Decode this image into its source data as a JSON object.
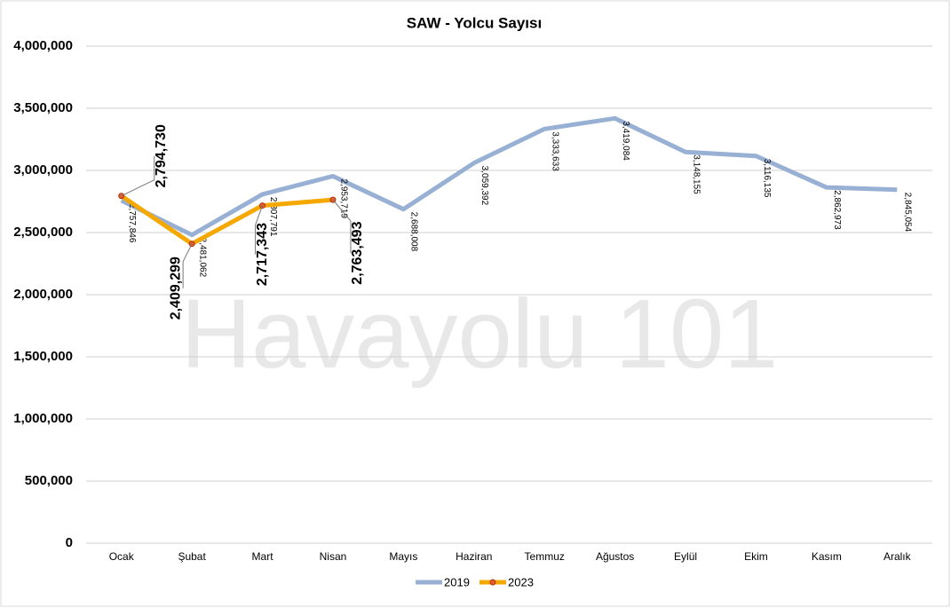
{
  "chart_data": {
    "type": "line",
    "title": "SAW - Yolcu Sayısı",
    "watermark": "Havayolu 101",
    "categories": [
      "Ocak",
      "Şubat",
      "Mart",
      "Nisan",
      "Mayıs",
      "Haziran",
      "Temmuz",
      "Ağustos",
      "Eylül",
      "Ekim",
      "Kasım",
      "Aralık"
    ],
    "series": [
      {
        "name": "2019",
        "color": "#98b0d3",
        "values": [
          2757846,
          2481062,
          2807791,
          2953719,
          2688008,
          3059392,
          3333633,
          3419084,
          3148155,
          3116135,
          2862973,
          2845054
        ],
        "value_labels": [
          "2,757,846",
          "2,481,062",
          "2,807,791",
          "2,953,719",
          "2,688,008",
          "3,059,392",
          "3,333,633",
          "3,419,084",
          "3,148,155",
          "3,116,135",
          "2,862,973",
          "2,845,054"
        ]
      },
      {
        "name": "2023",
        "color": "#f5a800",
        "marker_color": "#e0602a",
        "values": [
          2794730,
          2409299,
          2717343,
          2763493,
          null,
          null,
          null,
          null,
          null,
          null,
          null,
          null
        ],
        "value_labels": [
          "2,794,730",
          "2,409,299",
          "2,717,343",
          "2,763,493",
          null,
          null,
          null,
          null,
          null,
          null,
          null,
          null
        ]
      }
    ],
    "ylim": [
      0,
      4000000
    ],
    "yticks": [
      0,
      {
        "value": 500000,
        "label": "500,000"
      },
      {
        "value": 1000000,
        "label": "1,000,000"
      },
      {
        "value": 1500000,
        "label": "1,500,000"
      },
      {
        "value": 2000000,
        "label": "2,000,000"
      },
      {
        "value": 2500000,
        "label": "2,500,000"
      },
      {
        "value": 3000000,
        "label": "3,000,000"
      },
      {
        "value": 3500000,
        "label": "3,500,000"
      },
      {
        "value": 4000000,
        "label": "4,000,000"
      }
    ],
    "grid": true,
    "legend": "bottom"
  }
}
